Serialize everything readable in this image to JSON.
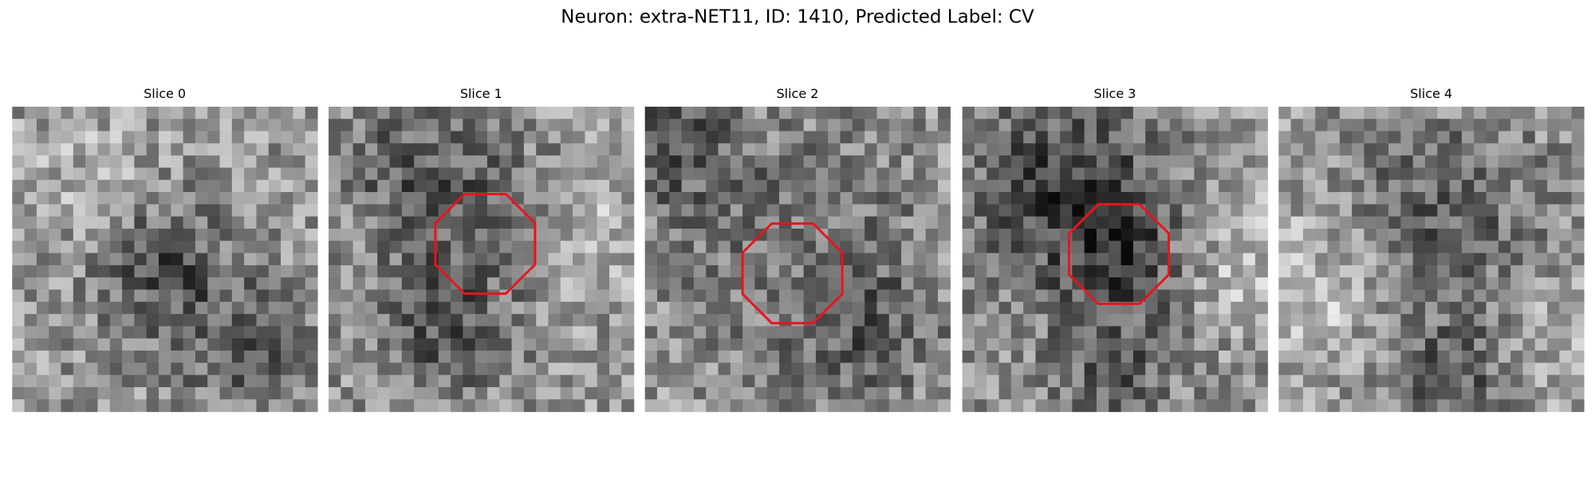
{
  "header": {
    "title": "Neuron: extra-NET11, ID: 1410, Predicted Label: CV"
  },
  "panels": [
    {
      "title": "Slice 0"
    },
    {
      "title": "Slice 1"
    },
    {
      "title": "Slice 2"
    },
    {
      "title": "Slice 3"
    },
    {
      "title": "Slice 4"
    }
  ]
}
